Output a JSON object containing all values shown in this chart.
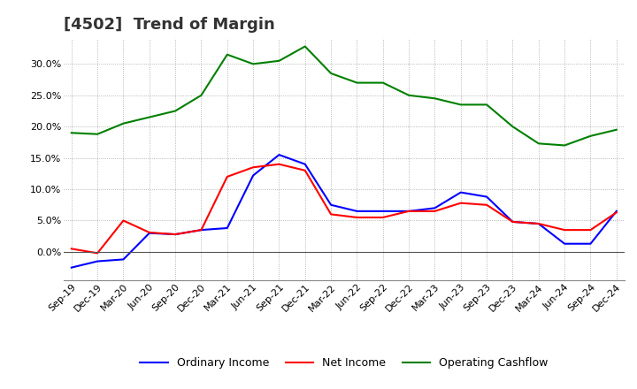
{
  "title": "[4502]  Trend of Margin",
  "x_labels": [
    "Sep-19",
    "Dec-19",
    "Mar-20",
    "Jun-20",
    "Sep-20",
    "Dec-20",
    "Mar-21",
    "Jun-21",
    "Sep-21",
    "Dec-21",
    "Mar-22",
    "Jun-22",
    "Sep-22",
    "Dec-22",
    "Mar-23",
    "Jun-23",
    "Sep-23",
    "Dec-23",
    "Mar-24",
    "Jun-24",
    "Sep-24",
    "Dec-24"
  ],
  "ordinary_income": [
    -2.5,
    -1.5,
    -1.2,
    3.0,
    2.8,
    3.5,
    3.8,
    12.2,
    15.5,
    14.0,
    7.5,
    6.5,
    6.5,
    6.5,
    7.0,
    9.5,
    8.8,
    4.8,
    4.5,
    1.3,
    1.3,
    6.5
  ],
  "net_income": [
    0.5,
    -0.2,
    5.0,
    3.1,
    2.8,
    3.5,
    12.0,
    13.5,
    14.0,
    13.0,
    6.0,
    5.5,
    5.5,
    6.5,
    6.5,
    7.8,
    7.5,
    4.8,
    4.5,
    3.5,
    3.5,
    6.3
  ],
  "operating_cashflow": [
    19.0,
    18.8,
    20.5,
    21.5,
    22.5,
    25.0,
    31.5,
    30.0,
    30.5,
    32.8,
    28.5,
    27.0,
    27.0,
    25.0,
    24.5,
    23.5,
    23.5,
    20.0,
    17.3,
    17.0,
    18.5,
    19.5
  ],
  "colors": {
    "ordinary_income": "#0000FF",
    "net_income": "#FF0000",
    "operating_cashflow": "#008000"
  },
  "ylim": [
    -4.5,
    34
  ],
  "yticks": [
    0.0,
    5.0,
    10.0,
    15.0,
    20.0,
    25.0,
    30.0
  ],
  "background_color": "#FFFFFF",
  "plot_bg_color": "#FFFFFF",
  "grid_color": "#999999",
  "title_fontsize": 13,
  "axis_fontsize": 8,
  "legend_fontsize": 9,
  "legend_labels": [
    "Ordinary Income",
    "Net Income",
    "Operating Cashflow"
  ]
}
